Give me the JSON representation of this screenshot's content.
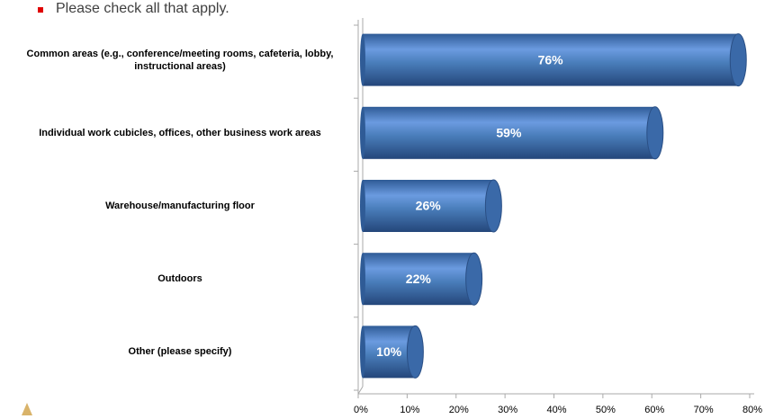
{
  "chart_data": {
    "type": "bar",
    "orientation": "horizontal",
    "subtitle": "Please check all that apply.",
    "categories": [
      "Common areas (e.g., conference/meeting rooms, cafeteria, lobby, instructional areas)",
      "Individual work cubicles, offices, other business work areas",
      "Warehouse/manufacturing floor",
      "Outdoors",
      "Other (please specify)"
    ],
    "values": [
      76,
      59,
      26,
      22,
      10
    ],
    "value_labels": [
      "76%",
      "59%",
      "26%",
      "22%",
      "10%"
    ],
    "color": "#4a7ebb",
    "xlim": [
      0,
      80
    ],
    "xticks": [
      {
        "value": 0,
        "label": "0%"
      },
      {
        "value": 10,
        "label": "10%"
      },
      {
        "value": 20,
        "label": "20%"
      },
      {
        "value": 30,
        "label": "30%"
      },
      {
        "value": 40,
        "label": "40%"
      },
      {
        "value": 50,
        "label": "50%"
      },
      {
        "value": 60,
        "label": "60%"
      },
      {
        "value": 70,
        "label": "70%"
      },
      {
        "value": 80,
        "label": "80%"
      }
    ]
  }
}
